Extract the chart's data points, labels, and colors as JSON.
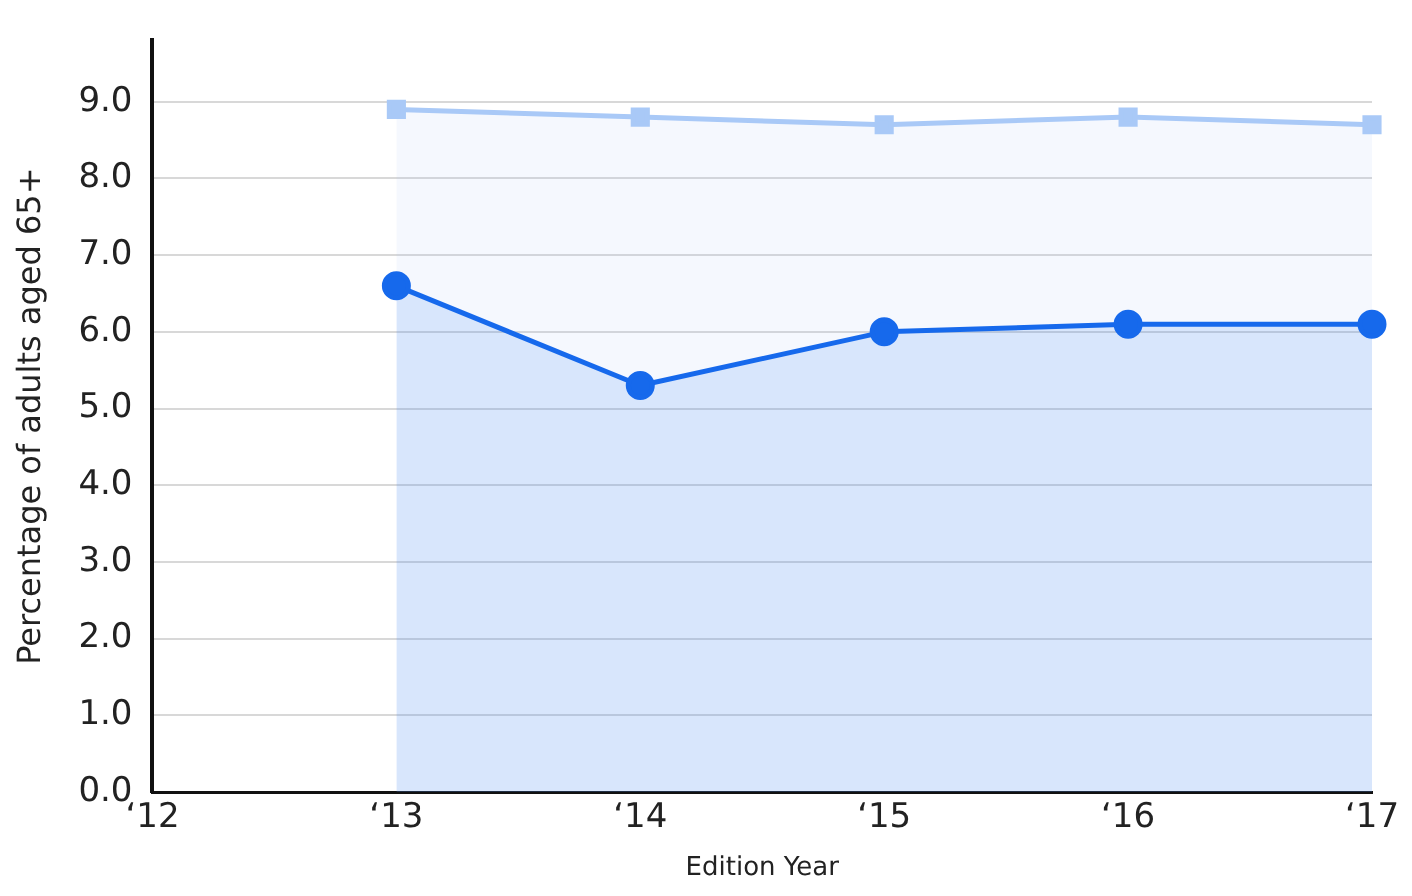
{
  "chart_data": {
    "type": "area",
    "xlabel": "Edition Year",
    "ylabel": "Percentage of adults aged 65+",
    "categories": [
      "‘12",
      "‘13",
      "‘14",
      "‘15",
      "‘16",
      "‘17"
    ],
    "series": [
      {
        "color": "#a9c9f7",
        "marker": "square",
        "values": [
          null,
          8.9,
          8.8,
          8.7,
          8.8,
          8.7
        ]
      },
      {
        "color": "#1669ec",
        "marker": "circle",
        "values": [
          null,
          6.6,
          5.3,
          6.0,
          6.1,
          6.1
        ]
      }
    ],
    "ylim": [
      0,
      9.8
    ],
    "yticks": [
      {
        "value": 0,
        "label": "0.0"
      },
      {
        "value": 1,
        "label": "1.0"
      },
      {
        "value": 2,
        "label": "2.0"
      },
      {
        "value": 3,
        "label": "3.0"
      },
      {
        "value": 4,
        "label": "4.0"
      },
      {
        "value": 5,
        "label": "5.0"
      },
      {
        "value": 6,
        "label": "6.0"
      },
      {
        "value": 7,
        "label": "7.0"
      },
      {
        "value": 8,
        "label": "8.0"
      },
      {
        "value": 9,
        "label": "9.0"
      }
    ],
    "grid": "y",
    "legend": false
  }
}
